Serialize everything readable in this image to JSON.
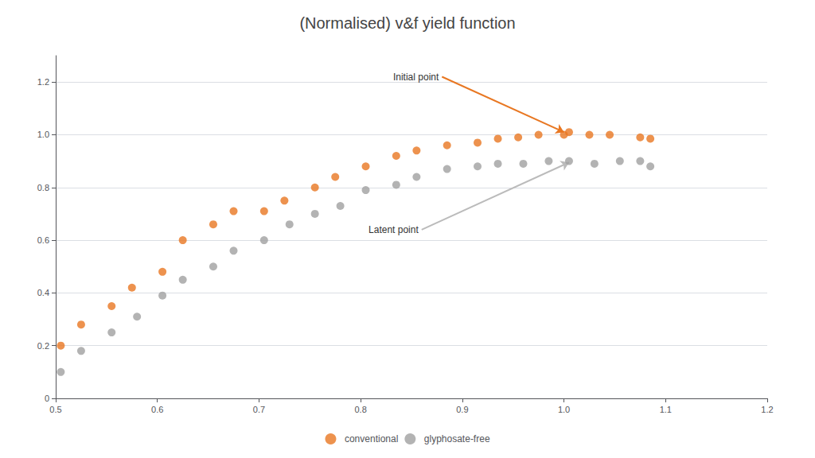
{
  "chart_data": {
    "type": "scatter",
    "title": "(Normalised) v&f yield function",
    "series": [
      {
        "name": "conventional",
        "color": "#E87722",
        "x": [
          0.505,
          0.525,
          0.555,
          0.575,
          0.605,
          0.625,
          0.655,
          0.675,
          0.705,
          0.725,
          0.755,
          0.775,
          0.805,
          0.835,
          0.855,
          0.885,
          0.915,
          0.935,
          0.955,
          0.975,
          1.0,
          1.005,
          1.025,
          1.045,
          1.075,
          1.085
        ],
        "values": [
          0.2,
          0.28,
          0.35,
          0.42,
          0.48,
          0.6,
          0.66,
          0.71,
          0.71,
          0.75,
          0.8,
          0.84,
          0.88,
          0.92,
          0.94,
          0.96,
          0.97,
          0.985,
          0.99,
          1.0,
          1.0,
          1.01,
          1.0,
          1.0,
          0.99,
          0.985
        ]
      },
      {
        "name": "glyphosate-free",
        "color": "#A0A0A0",
        "x": [
          0.505,
          0.525,
          0.555,
          0.58,
          0.605,
          0.625,
          0.655,
          0.675,
          0.705,
          0.73,
          0.755,
          0.78,
          0.805,
          0.835,
          0.855,
          0.885,
          0.915,
          0.935,
          0.96,
          0.985,
          1.005,
          1.03,
          1.055,
          1.075,
          1.085
        ],
        "values": [
          0.1,
          0.18,
          0.25,
          0.31,
          0.39,
          0.45,
          0.5,
          0.56,
          0.6,
          0.66,
          0.7,
          0.73,
          0.79,
          0.81,
          0.84,
          0.87,
          0.88,
          0.89,
          0.89,
          0.9,
          0.9,
          0.89,
          0.9,
          0.9,
          0.88
        ]
      }
    ],
    "xlim": [
      0.5,
      1.2
    ],
    "ylim": [
      0,
      1.3
    ],
    "xticks": [
      0.5,
      0.6,
      0.7,
      0.8,
      0.9,
      {
        "value": 1.0,
        "label": "1.0"
      },
      1.1,
      1.2
    ],
    "yticks": [
      0,
      0.2,
      0.4,
      0.6,
      0.8,
      {
        "value": 1.0,
        "label": "1.0"
      },
      1.2
    ],
    "grid": true,
    "legend": "bottom",
    "annotations": [
      {
        "text": "Initial point",
        "x": 0.88,
        "y": 1.22,
        "arrow_x": 1.0,
        "arrow_y": 1.01,
        "color": "#E87722"
      },
      {
        "text": "Latent point",
        "x": 0.86,
        "y": 0.64,
        "arrow_x": 1.005,
        "arrow_y": 0.895,
        "color": "#BBBBBB"
      }
    ]
  }
}
